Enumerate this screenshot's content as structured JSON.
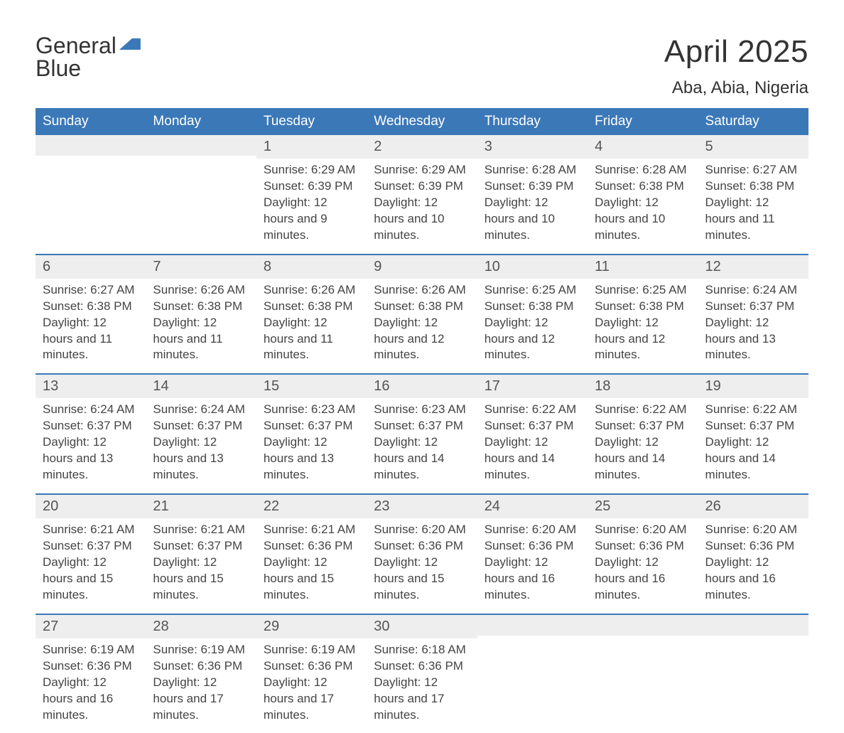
{
  "logo": {
    "word1": "General",
    "word2": "Blue",
    "brand_color": "#3b78b8"
  },
  "title": "April 2025",
  "location": "Aba, Abia, Nigeria",
  "colors": {
    "header_bg": "#3b78b8",
    "header_text": "#ffffff",
    "daynum_bg": "#eeeeee",
    "page_bg": "#ffffff",
    "text": "#444444",
    "week_divider": "#3b78b8"
  },
  "type": "calendar-table",
  "weekdays": [
    "Sunday",
    "Monday",
    "Tuesday",
    "Wednesday",
    "Thursday",
    "Friday",
    "Saturday"
  ],
  "labels": {
    "sunrise": "Sunrise: ",
    "sunset": "Sunset: ",
    "daylight": "Daylight: "
  },
  "weeks": [
    [
      null,
      null,
      {
        "n": "1",
        "sr": "6:29 AM",
        "ss": "6:39 PM",
        "dl": "12 hours and 9 minutes."
      },
      {
        "n": "2",
        "sr": "6:29 AM",
        "ss": "6:39 PM",
        "dl": "12 hours and 10 minutes."
      },
      {
        "n": "3",
        "sr": "6:28 AM",
        "ss": "6:39 PM",
        "dl": "12 hours and 10 minutes."
      },
      {
        "n": "4",
        "sr": "6:28 AM",
        "ss": "6:38 PM",
        "dl": "12 hours and 10 minutes."
      },
      {
        "n": "5",
        "sr": "6:27 AM",
        "ss": "6:38 PM",
        "dl": "12 hours and 11 minutes."
      }
    ],
    [
      {
        "n": "6",
        "sr": "6:27 AM",
        "ss": "6:38 PM",
        "dl": "12 hours and 11 minutes."
      },
      {
        "n": "7",
        "sr": "6:26 AM",
        "ss": "6:38 PM",
        "dl": "12 hours and 11 minutes."
      },
      {
        "n": "8",
        "sr": "6:26 AM",
        "ss": "6:38 PM",
        "dl": "12 hours and 11 minutes."
      },
      {
        "n": "9",
        "sr": "6:26 AM",
        "ss": "6:38 PM",
        "dl": "12 hours and 12 minutes."
      },
      {
        "n": "10",
        "sr": "6:25 AM",
        "ss": "6:38 PM",
        "dl": "12 hours and 12 minutes."
      },
      {
        "n": "11",
        "sr": "6:25 AM",
        "ss": "6:38 PM",
        "dl": "12 hours and 12 minutes."
      },
      {
        "n": "12",
        "sr": "6:24 AM",
        "ss": "6:37 PM",
        "dl": "12 hours and 13 minutes."
      }
    ],
    [
      {
        "n": "13",
        "sr": "6:24 AM",
        "ss": "6:37 PM",
        "dl": "12 hours and 13 minutes."
      },
      {
        "n": "14",
        "sr": "6:24 AM",
        "ss": "6:37 PM",
        "dl": "12 hours and 13 minutes."
      },
      {
        "n": "15",
        "sr": "6:23 AM",
        "ss": "6:37 PM",
        "dl": "12 hours and 13 minutes."
      },
      {
        "n": "16",
        "sr": "6:23 AM",
        "ss": "6:37 PM",
        "dl": "12 hours and 14 minutes."
      },
      {
        "n": "17",
        "sr": "6:22 AM",
        "ss": "6:37 PM",
        "dl": "12 hours and 14 minutes."
      },
      {
        "n": "18",
        "sr": "6:22 AM",
        "ss": "6:37 PM",
        "dl": "12 hours and 14 minutes."
      },
      {
        "n": "19",
        "sr": "6:22 AM",
        "ss": "6:37 PM",
        "dl": "12 hours and 14 minutes."
      }
    ],
    [
      {
        "n": "20",
        "sr": "6:21 AM",
        "ss": "6:37 PM",
        "dl": "12 hours and 15 minutes."
      },
      {
        "n": "21",
        "sr": "6:21 AM",
        "ss": "6:37 PM",
        "dl": "12 hours and 15 minutes."
      },
      {
        "n": "22",
        "sr": "6:21 AM",
        "ss": "6:36 PM",
        "dl": "12 hours and 15 minutes."
      },
      {
        "n": "23",
        "sr": "6:20 AM",
        "ss": "6:36 PM",
        "dl": "12 hours and 15 minutes."
      },
      {
        "n": "24",
        "sr": "6:20 AM",
        "ss": "6:36 PM",
        "dl": "12 hours and 16 minutes."
      },
      {
        "n": "25",
        "sr": "6:20 AM",
        "ss": "6:36 PM",
        "dl": "12 hours and 16 minutes."
      },
      {
        "n": "26",
        "sr": "6:20 AM",
        "ss": "6:36 PM",
        "dl": "12 hours and 16 minutes."
      }
    ],
    [
      {
        "n": "27",
        "sr": "6:19 AM",
        "ss": "6:36 PM",
        "dl": "12 hours and 16 minutes."
      },
      {
        "n": "28",
        "sr": "6:19 AM",
        "ss": "6:36 PM",
        "dl": "12 hours and 17 minutes."
      },
      {
        "n": "29",
        "sr": "6:19 AM",
        "ss": "6:36 PM",
        "dl": "12 hours and 17 minutes."
      },
      {
        "n": "30",
        "sr": "6:18 AM",
        "ss": "6:36 PM",
        "dl": "12 hours and 17 minutes."
      },
      null,
      null,
      null
    ]
  ]
}
